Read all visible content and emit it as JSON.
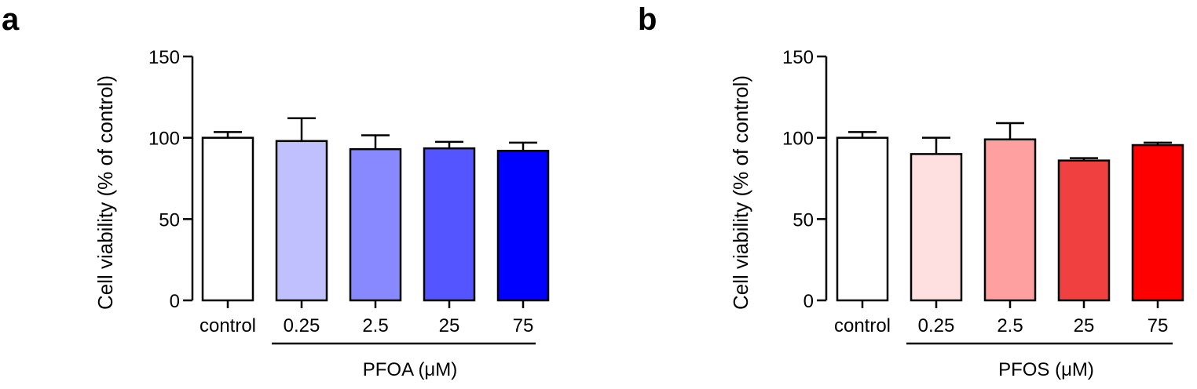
{
  "chart_data": [
    {
      "type": "bar",
      "panel_label": "a",
      "ylabel": "Cell viability (% of control)",
      "ylim": [
        0,
        150
      ],
      "yticks": [
        0,
        50,
        100,
        150
      ],
      "categories": [
        "control",
        "0.25",
        "2.5",
        "25",
        "75"
      ],
      "values": [
        100,
        98,
        93,
        93.5,
        92
      ],
      "errors": [
        3.5,
        14,
        8.5,
        4,
        5
      ],
      "bar_colors": [
        "#ffffff",
        "#c0c0ff",
        "#8888ff",
        "#5555ff",
        "#0000ff"
      ],
      "group_label": "PFOA (μM)",
      "grid": false
    },
    {
      "type": "bar",
      "panel_label": "b",
      "ylabel": "Cell viability (% of control)",
      "ylim": [
        0,
        150
      ],
      "yticks": [
        0,
        50,
        100,
        150
      ],
      "categories": [
        "control",
        "0.25",
        "2.5",
        "25",
        "75"
      ],
      "values": [
        100,
        90,
        99,
        86,
        95.5
      ],
      "errors": [
        3.5,
        10,
        10,
        1.5,
        1.5
      ],
      "bar_colors": [
        "#ffffff",
        "#ffe0e0",
        "#ffa0a0",
        "#f04040",
        "#ff0000"
      ],
      "group_label": "PFOS (μM)",
      "grid": false
    }
  ]
}
